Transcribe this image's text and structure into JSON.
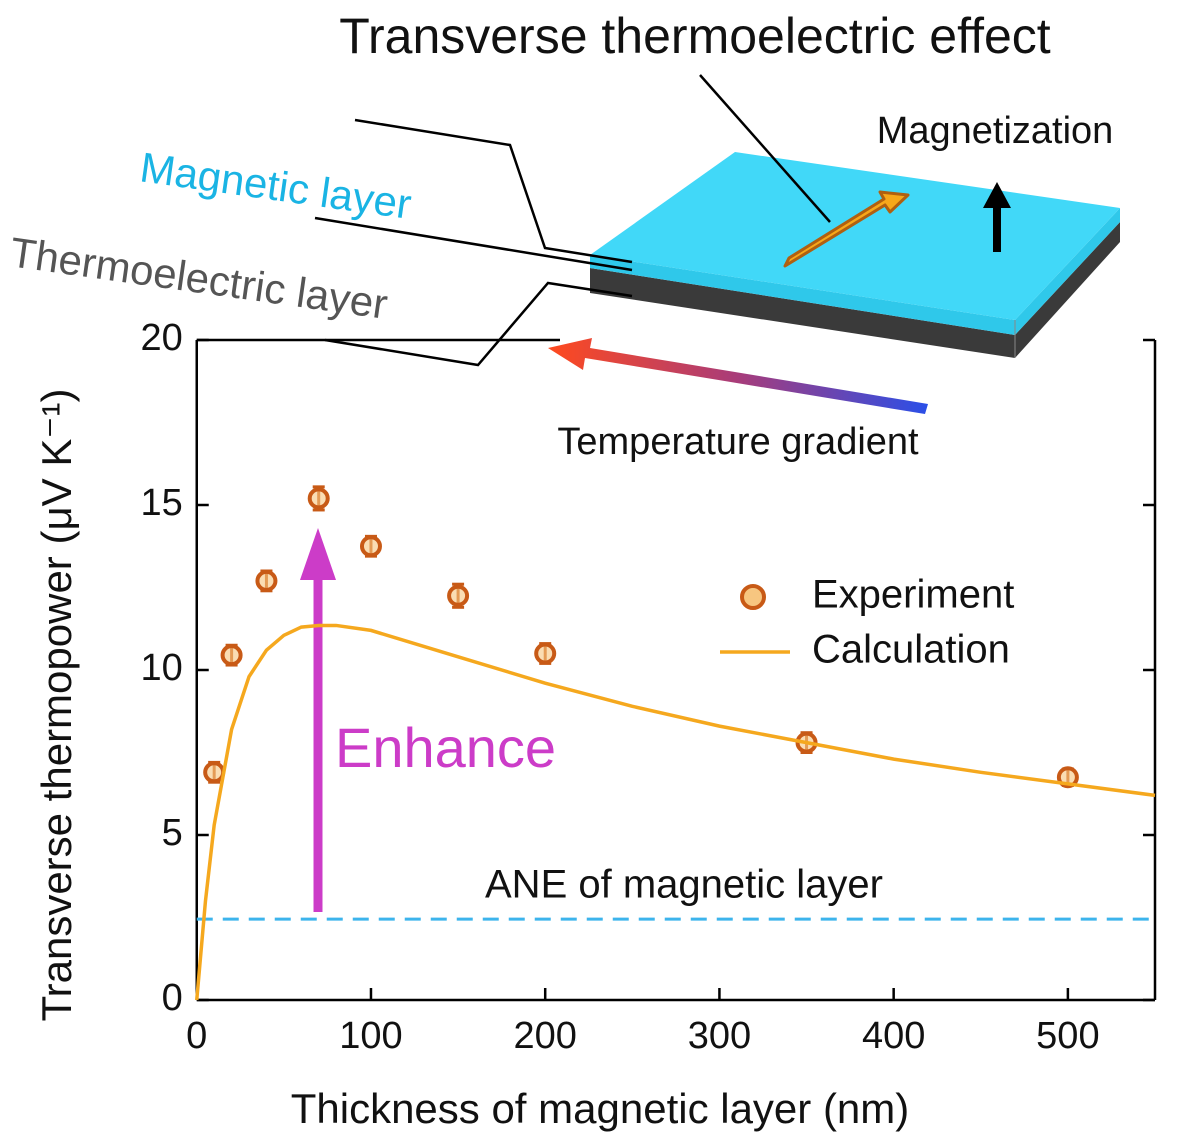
{
  "chart_data": {
    "type": "scatter",
    "title": "Transverse thermoelectric effect",
    "xlabel": "Thickness of magnetic layer (nm)",
    "ylabel": "Transverse thermopower (μV K⁻¹)",
    "xlim": [
      0,
      550
    ],
    "ylim": [
      0,
      20
    ],
    "xticks": [
      0,
      100,
      200,
      300,
      400,
      500
    ],
    "yticks": [
      0,
      5,
      10,
      15,
      20
    ],
    "series": [
      {
        "name": "Experiment",
        "type": "scatter",
        "color": "#c85a16",
        "fill": "#f7c680",
        "x": [
          10,
          20,
          40,
          70,
          100,
          150,
          200,
          350,
          500
        ],
        "values": [
          6.9,
          10.45,
          12.7,
          15.2,
          13.75,
          12.25,
          10.5,
          7.8,
          6.75
        ],
        "errors": [
          0.3,
          0.3,
          0.3,
          0.35,
          0.3,
          0.35,
          0.3,
          0.3,
          0.25
        ]
      },
      {
        "name": "Calculation",
        "type": "line",
        "color": "#f5a81e",
        "x": [
          0,
          5,
          10,
          20,
          30,
          40,
          50,
          60,
          70,
          80,
          100,
          150,
          200,
          250,
          300,
          350,
          400,
          450,
          500,
          550
        ],
        "values": [
          0,
          3.0,
          5.3,
          8.2,
          9.8,
          10.6,
          11.05,
          11.3,
          11.35,
          11.35,
          11.2,
          10.4,
          9.6,
          8.9,
          8.3,
          7.8,
          7.3,
          6.9,
          6.55,
          6.2
        ]
      }
    ],
    "reference": {
      "label": "ANE of magnetic layer",
      "value": 2.45,
      "color": "#3cb4ec"
    },
    "annotations": {
      "enhance": "Enhance",
      "magnetic_layer": "Magnetic layer",
      "thermoelectric_layer": "Thermoelectric layer",
      "magnetization": "Magnetization",
      "temperature_gradient": "Temperature gradient"
    }
  }
}
